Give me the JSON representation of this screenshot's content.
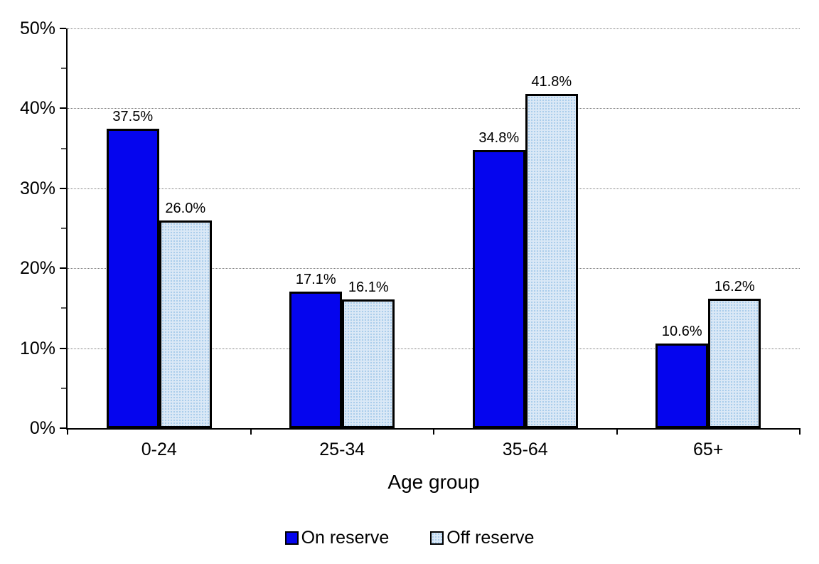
{
  "chart_data": {
    "type": "bar",
    "title": "",
    "xlabel": "Age group",
    "ylabel": "",
    "categories": [
      "0-24",
      "25-34",
      "35-64",
      "65+"
    ],
    "series": [
      {
        "name": "On reserve",
        "values": [
          37.5,
          17.1,
          34.8,
          10.6
        ],
        "labels": [
          "37.5%",
          "17.1%",
          "34.8%",
          "10.6%"
        ],
        "fill": "solid",
        "color": "#0505EE"
      },
      {
        "name": "Off reserve",
        "values": [
          26.0,
          16.1,
          41.8,
          16.2
        ],
        "labels": [
          "26.0%",
          "16.1%",
          "41.8%",
          "16.2%"
        ],
        "fill": "dot-pattern",
        "color": "#DAE8F6",
        "dot_color": "#A6CBEA"
      }
    ],
    "ylim": [
      0,
      50
    ],
    "ytick_step": 10,
    "yminor_step": 5,
    "ytick_labels": [
      "0%",
      "10%",
      "20%",
      "30%",
      "40%",
      "50%"
    ],
    "grid": "horizontal-dotted",
    "legend_position": "bottom"
  },
  "colors": {
    "background": "#FFFFFF",
    "axis": "#000000",
    "grid": "#808080",
    "bar_border": "#000000",
    "on_reserve": "#0505EE",
    "off_reserve_base": "#DAE8F6",
    "off_reserve_dot": "#A6CBEA",
    "text": "#000000"
  }
}
